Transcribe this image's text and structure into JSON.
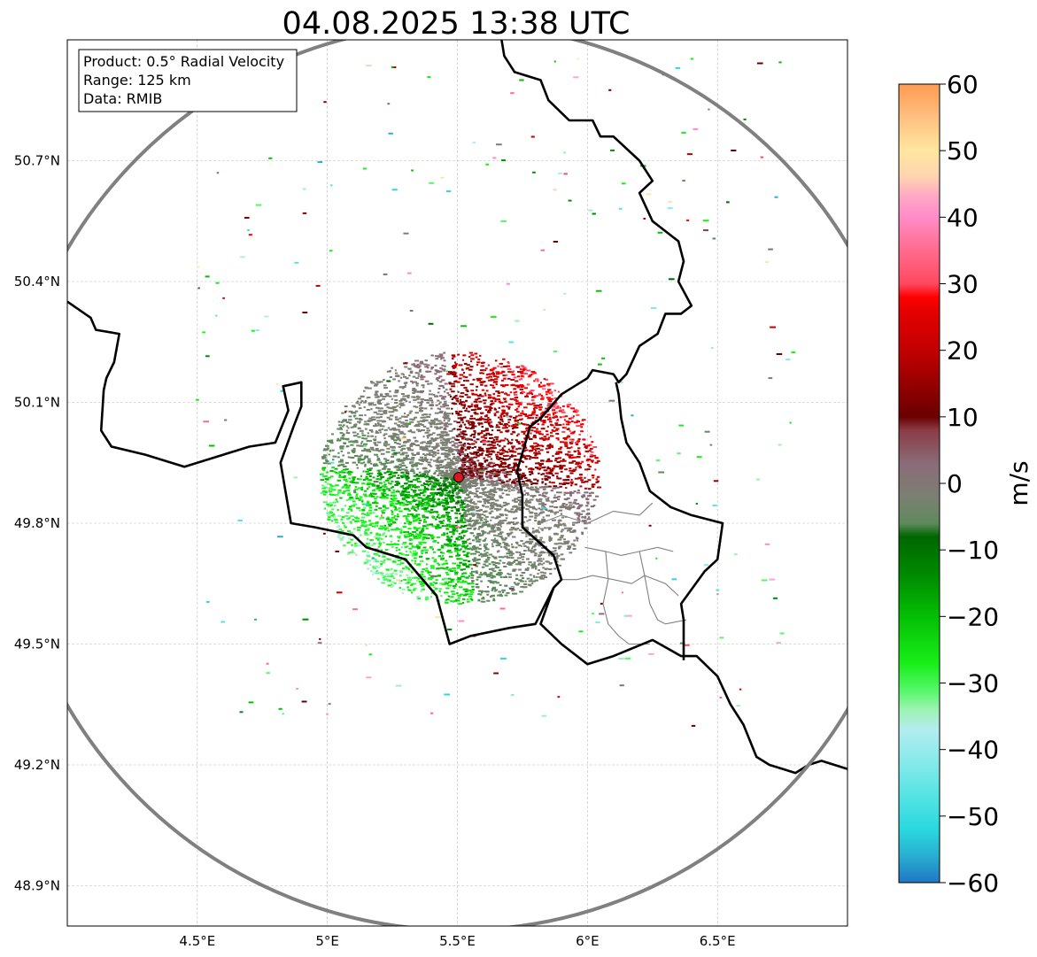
{
  "title": "04.08.2025 13:38 UTC",
  "info_box": {
    "lines": [
      "Product: 0.5° Radial Velocity",
      "Range: 125 km",
      "Data: RMIB"
    ]
  },
  "map": {
    "lon_range": [
      4.0,
      7.0
    ],
    "lat_range": [
      48.8,
      51.0
    ],
    "x_ticks": [
      {
        "value": 4.5,
        "label": "4.5°E"
      },
      {
        "value": 5.0,
        "label": "5°E"
      },
      {
        "value": 5.5,
        "label": "5.5°E"
      },
      {
        "value": 6.0,
        "label": "6°E"
      },
      {
        "value": 6.5,
        "label": "6.5°E"
      }
    ],
    "y_ticks": [
      {
        "value": 50.7,
        "label": "50.7°N"
      },
      {
        "value": 50.4,
        "label": "50.4°N"
      },
      {
        "value": 50.1,
        "label": "50.1°N"
      },
      {
        "value": 49.8,
        "label": "49.8°N"
      },
      {
        "value": 49.5,
        "label": "49.5°N"
      },
      {
        "value": 49.2,
        "label": "49.2°N"
      },
      {
        "value": 48.9,
        "label": "48.9°N"
      }
    ],
    "grid": true,
    "radar_site": {
      "lon": 5.505,
      "lat": 49.914
    },
    "range_ring_color": "#808080",
    "marker_color": "#e0141e",
    "national_border_color": "#000000",
    "canton_border_color": "#808080"
  },
  "colorbar": {
    "label": "m/s",
    "min": -60,
    "max": 60,
    "ticks": [
      {
        "value": 60,
        "label": "60"
      },
      {
        "value": 50,
        "label": "50"
      },
      {
        "value": 40,
        "label": "40"
      },
      {
        "value": 30,
        "label": "30"
      },
      {
        "value": 20,
        "label": "20"
      },
      {
        "value": 10,
        "label": "10"
      },
      {
        "value": 0,
        "label": "0"
      },
      {
        "value": -10,
        "label": "−10"
      },
      {
        "value": -20,
        "label": "−20"
      },
      {
        "value": -30,
        "label": "−30"
      },
      {
        "value": -40,
        "label": "−40"
      },
      {
        "value": -50,
        "label": "−50"
      },
      {
        "value": -60,
        "label": "−60"
      }
    ],
    "stops": [
      {
        "value": -60,
        "color": "#1f77c4"
      },
      {
        "value": -56,
        "color": "#28aed0"
      },
      {
        "value": -52,
        "color": "#2ad8df"
      },
      {
        "value": -47,
        "color": "#54e3e3"
      },
      {
        "value": -42,
        "color": "#86e9ea"
      },
      {
        "value": -37,
        "color": "#b3ecef"
      },
      {
        "value": -34,
        "color": "#9df3b2"
      },
      {
        "value": -31,
        "color": "#53f767"
      },
      {
        "value": -27,
        "color": "#18ee18"
      },
      {
        "value": -20,
        "color": "#04bf04"
      },
      {
        "value": -14,
        "color": "#008c00"
      },
      {
        "value": -8,
        "color": "#006600"
      },
      {
        "value": -6,
        "color": "#5f8a5d"
      },
      {
        "value": -2,
        "color": "#7c7f73"
      },
      {
        "value": 3,
        "color": "#8a6c78"
      },
      {
        "value": 8,
        "color": "#8a3c45"
      },
      {
        "value": 10,
        "color": "#6a0000"
      },
      {
        "value": 14,
        "color": "#8e0000"
      },
      {
        "value": 20,
        "color": "#c20000"
      },
      {
        "value": 26,
        "color": "#e50000"
      },
      {
        "value": 28,
        "color": "#ff0000"
      },
      {
        "value": 30,
        "color": "#ff4860"
      },
      {
        "value": 35,
        "color": "#ff6b8d"
      },
      {
        "value": 40,
        "color": "#ff8cc8"
      },
      {
        "value": 43,
        "color": "#ffa6c6"
      },
      {
        "value": 46,
        "color": "#ffd3b0"
      },
      {
        "value": 50,
        "color": "#ffe6a0"
      },
      {
        "value": 55,
        "color": "#ffc07f"
      },
      {
        "value": 60,
        "color": "#ff9a52"
      }
    ]
  },
  "overlay_layers": {
    "belgium_border": [
      [
        4.0,
        50.35
      ],
      [
        4.09,
        50.31
      ],
      [
        4.11,
        50.28
      ],
      [
        4.2,
        50.27
      ],
      [
        4.18,
        50.2
      ],
      [
        4.15,
        50.16
      ],
      [
        4.14,
        50.13
      ],
      [
        4.13,
        50.03
      ],
      [
        4.17,
        49.99
      ],
      [
        4.3,
        49.97
      ],
      [
        4.45,
        49.94
      ],
      [
        4.6,
        49.97
      ],
      [
        4.7,
        49.99
      ],
      [
        4.8,
        50.0
      ],
      [
        4.85,
        50.08
      ],
      [
        4.83,
        50.14
      ],
      [
        4.9,
        50.15
      ],
      [
        4.9,
        50.09
      ],
      [
        4.87,
        50.04
      ],
      [
        4.82,
        49.95
      ],
      [
        4.86,
        49.8
      ],
      [
        4.95,
        49.79
      ],
      [
        5.1,
        49.77
      ],
      [
        5.15,
        49.74
      ],
      [
        5.3,
        49.71
      ],
      [
        5.42,
        49.62
      ],
      [
        5.47,
        49.5
      ],
      [
        5.55,
        49.52
      ],
      [
        5.7,
        49.54
      ],
      [
        5.8,
        49.55
      ],
      [
        5.87,
        49.64
      ],
      [
        5.9,
        49.66
      ],
      [
        5.87,
        49.72
      ],
      [
        5.75,
        49.79
      ],
      [
        5.75,
        49.87
      ],
      [
        5.73,
        49.93
      ],
      [
        5.78,
        50.04
      ],
      [
        5.82,
        50.06
      ],
      [
        5.9,
        50.12
      ],
      [
        6.0,
        50.16
      ],
      [
        6.02,
        50.18
      ],
      [
        6.1,
        50.17
      ],
      [
        6.12,
        50.15
      ],
      [
        6.15,
        50.17
      ],
      [
        6.2,
        50.24
      ],
      [
        6.27,
        50.27
      ],
      [
        6.3,
        50.32
      ],
      [
        6.36,
        50.32
      ],
      [
        6.4,
        50.34
      ],
      [
        6.35,
        50.4
      ],
      [
        6.37,
        50.45
      ],
      [
        6.35,
        50.5
      ],
      [
        6.25,
        50.55
      ],
      [
        6.2,
        50.62
      ],
      [
        6.25,
        50.65
      ],
      [
        6.2,
        50.7
      ],
      [
        6.1,
        50.76
      ],
      [
        6.05,
        50.76
      ],
      [
        6.02,
        50.8
      ],
      [
        5.93,
        50.8
      ],
      [
        5.85,
        50.85
      ],
      [
        5.82,
        50.9
      ],
      [
        5.72,
        50.92
      ],
      [
        5.68,
        50.96
      ],
      [
        5.67,
        51.0
      ]
    ],
    "luxembourg_border": [
      [
        5.87,
        49.64
      ],
      [
        5.82,
        49.55
      ],
      [
        5.9,
        49.5
      ],
      [
        6.0,
        49.45
      ],
      [
        6.1,
        49.47
      ],
      [
        6.25,
        49.51
      ],
      [
        6.36,
        49.47
      ],
      [
        6.42,
        49.47
      ],
      [
        6.5,
        49.42
      ],
      [
        6.55,
        49.35
      ],
      [
        6.6,
        49.3
      ],
      [
        6.65,
        49.22
      ],
      [
        6.7,
        49.2
      ],
      [
        6.8,
        49.18
      ],
      [
        6.85,
        49.2
      ],
      [
        6.9,
        49.21
      ],
      [
        7.0,
        49.19
      ]
    ],
    "germany_lux_border": [
      [
        6.37,
        49.46
      ],
      [
        6.37,
        49.56
      ],
      [
        6.36,
        49.6
      ],
      [
        6.45,
        49.68
      ],
      [
        6.5,
        49.71
      ],
      [
        6.52,
        49.8
      ],
      [
        6.4,
        49.82
      ],
      [
        6.32,
        49.84
      ],
      [
        6.24,
        49.88
      ],
      [
        6.2,
        49.95
      ],
      [
        6.15,
        50.0
      ],
      [
        6.13,
        50.06
      ],
      [
        6.12,
        50.12
      ],
      [
        6.11,
        50.15
      ]
    ],
    "canton_lines": [
      [
        [
          5.99,
          49.74
        ],
        [
          6.07,
          49.73
        ],
        [
          6.13,
          49.72
        ],
        [
          6.2,
          49.73
        ],
        [
          6.27,
          49.74
        ],
        [
          6.33,
          49.73
        ]
      ],
      [
        [
          6.07,
          49.73
        ],
        [
          6.08,
          49.66
        ],
        [
          6.06,
          49.6
        ],
        [
          6.08,
          49.55
        ],
        [
          6.12,
          49.52
        ],
        [
          6.16,
          49.5
        ],
        [
          6.24,
          49.5
        ]
      ],
      [
        [
          5.9,
          49.66
        ],
        [
          5.96,
          49.66
        ],
        [
          6.02,
          49.67
        ],
        [
          6.1,
          49.66
        ],
        [
          6.17,
          49.65
        ],
        [
          6.22,
          49.67
        ],
        [
          6.3,
          49.65
        ],
        [
          6.35,
          49.62
        ]
      ],
      [
        [
          6.2,
          49.73
        ],
        [
          6.22,
          49.67
        ],
        [
          6.24,
          49.6
        ],
        [
          6.27,
          49.56
        ],
        [
          6.3,
          49.55
        ],
        [
          6.38,
          49.56
        ]
      ],
      [
        [
          5.82,
          49.8
        ],
        [
          5.9,
          49.82
        ],
        [
          6.0,
          49.8
        ],
        [
          6.1,
          49.83
        ],
        [
          6.2,
          49.82
        ],
        [
          6.25,
          49.85
        ]
      ]
    ]
  }
}
